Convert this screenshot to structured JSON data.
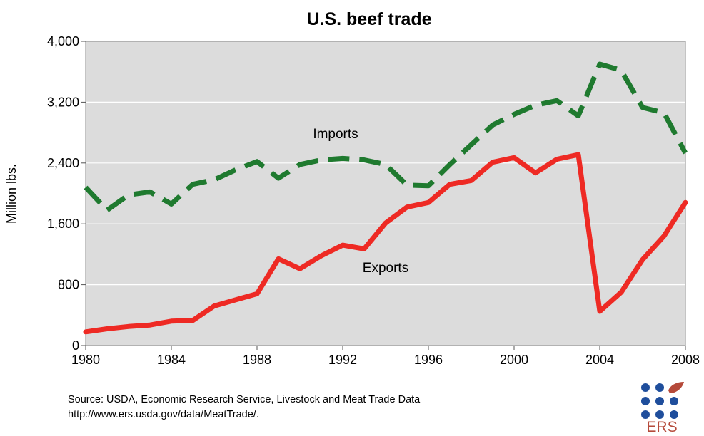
{
  "chart_data": {
    "type": "line",
    "title": "U.S. beef trade",
    "ylabel": "Million lbs.",
    "xlabel": "",
    "xlim": [
      1980,
      2008
    ],
    "ylim": [
      0,
      4000
    ],
    "x_ticks": [
      "1980",
      "1984",
      "1988",
      "1992",
      "1996",
      "2000",
      "2004",
      "2008"
    ],
    "y_ticks": [
      "0",
      "800",
      "1,600",
      "2,400",
      "3,200",
      "4,000"
    ],
    "grid": "horizontal",
    "x": [
      1980,
      1981,
      1982,
      1983,
      1984,
      1985,
      1986,
      1987,
      1988,
      1989,
      1990,
      1991,
      1992,
      1993,
      1994,
      1995,
      1996,
      1997,
      1998,
      1999,
      2000,
      2001,
      2002,
      2003,
      2004,
      2005,
      2006,
      2007,
      2008
    ],
    "series": [
      {
        "name": "Imports",
        "color": "#1f7a2f",
        "style": "dashed",
        "values": [
          2080,
          1780,
          1980,
          2020,
          1860,
          2120,
          2180,
          2310,
          2420,
          2200,
          2380,
          2440,
          2460,
          2440,
          2380,
          2110,
          2100,
          2380,
          2640,
          2900,
          3040,
          3160,
          3220,
          3020,
          3700,
          3620,
          3130,
          3060,
          2530
        ]
      },
      {
        "name": "Exports",
        "color": "#ee2a24",
        "style": "solid",
        "values": [
          180,
          220,
          250,
          270,
          320,
          330,
          520,
          600,
          680,
          1140,
          1010,
          1180,
          1320,
          1270,
          1610,
          1820,
          1880,
          2120,
          2170,
          2410,
          2470,
          2270,
          2450,
          2510,
          450,
          700,
          1130,
          1440,
          1880
        ]
      }
    ]
  },
  "source": {
    "line1": "Source: USDA, Economic Research Service, Livestock and Meat Trade Data",
    "line2": "http://www.ers.usda.gov/data/MeatTrade/."
  },
  "logo": {
    "text": "ERS",
    "dot_color": "#1f4e9c",
    "leaf_color": "#b54a3a"
  }
}
